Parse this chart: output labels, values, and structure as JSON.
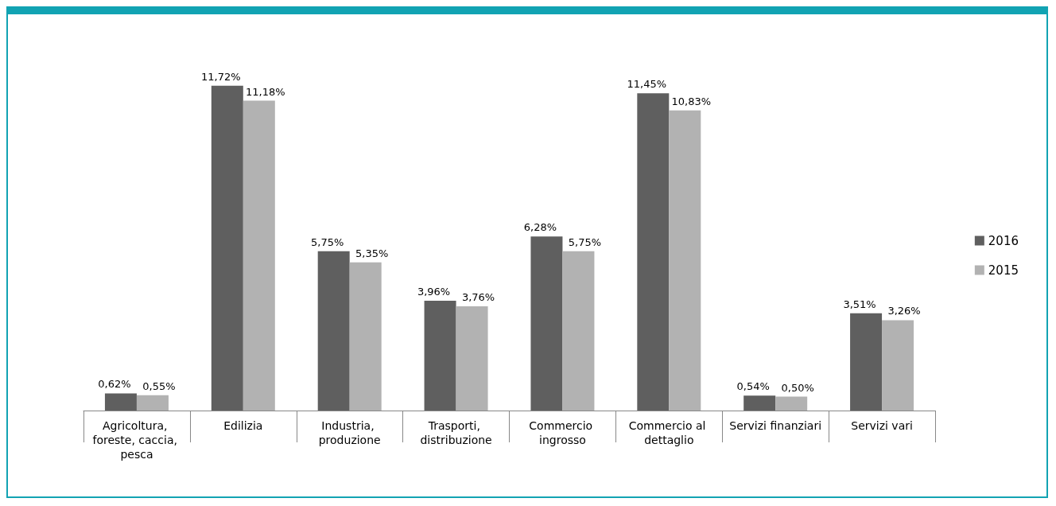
{
  "chart_data": {
    "type": "bar",
    "categories": [
      "Agricoltura, foreste, caccia, pesca",
      "Edilizia",
      "Industria, produzione",
      "Trasporti, distribuzione",
      "Commercio ingrosso",
      "Commercio al dettaglio",
      "Servizi finanziari",
      "Servizi vari"
    ],
    "series": [
      {
        "name": "2016",
        "color": "#5f5f5f",
        "values": [
          0.62,
          11.72,
          5.75,
          3.96,
          6.28,
          11.45,
          0.54,
          3.51
        ],
        "value_labels": [
          "0,62%",
          "11,72%",
          "5,75%",
          "3,96%",
          "6,28%",
          "11,45%",
          "0,54%",
          "3,51%"
        ]
      },
      {
        "name": "2015",
        "color": "#b2b2b2",
        "values": [
          0.55,
          11.18,
          5.35,
          3.76,
          5.75,
          10.83,
          0.5,
          3.26
        ],
        "value_labels": [
          "0,55%",
          "11,18%",
          "5,35%",
          "3,76%",
          "5,75%",
          "10,83%",
          "0,50%",
          "3,26%"
        ]
      }
    ],
    "legend": "right",
    "grid": false
  }
}
